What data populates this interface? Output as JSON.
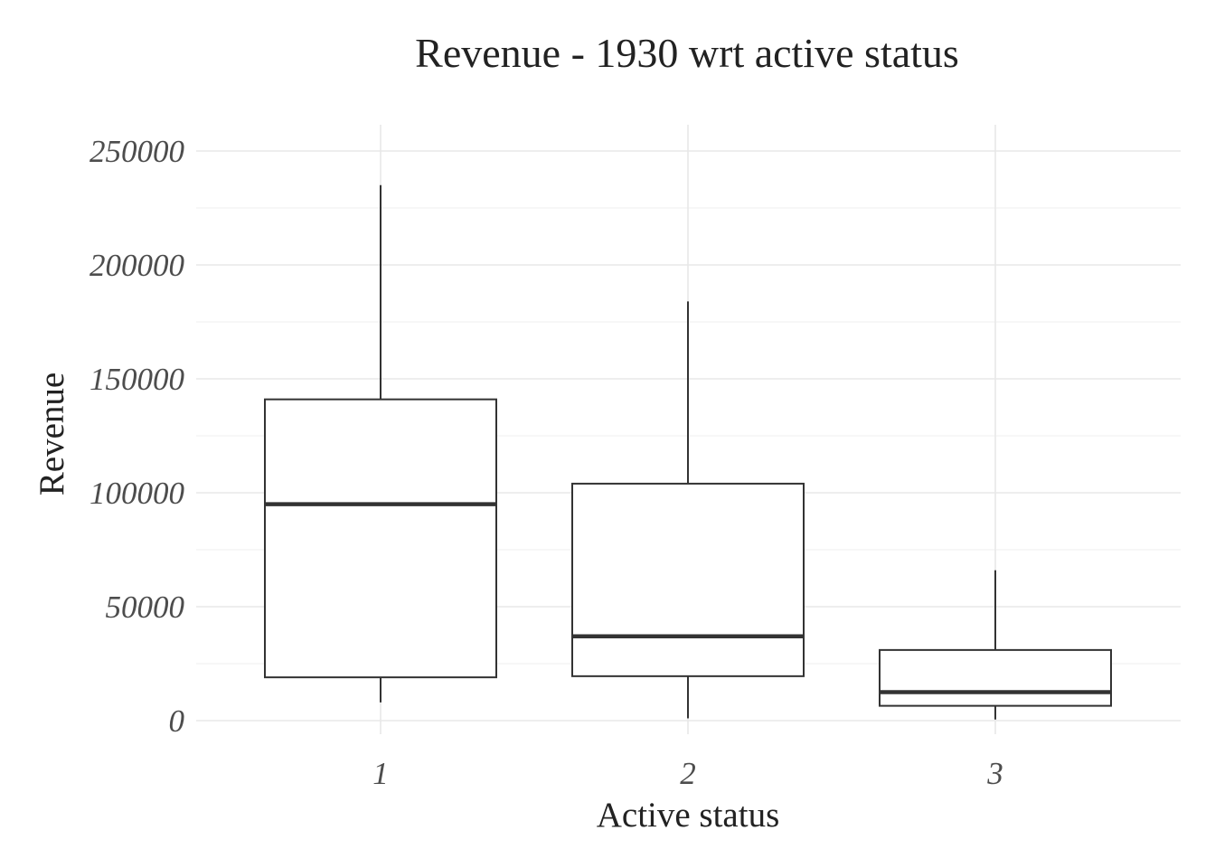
{
  "chart_data": {
    "type": "boxplot",
    "title": "Revenue - 1930 wrt active status",
    "xlabel": "Active status",
    "ylabel": "Revenue",
    "categories": [
      "1",
      "2",
      "3"
    ],
    "yticks": [
      "0",
      "50000",
      "100000",
      "150000",
      "200000",
      "250000"
    ],
    "ylim": [
      -6000,
      262000
    ],
    "grid": true,
    "boxes": [
      {
        "category": "1",
        "min": 8000,
        "q1": 19000,
        "median": 95000,
        "q3": 141000,
        "max": 235000
      },
      {
        "category": "2",
        "min": 1000,
        "q1": 19500,
        "median": 37000,
        "q3": 104000,
        "max": 184000
      },
      {
        "category": "3",
        "min": 500,
        "q1": 6500,
        "median": 12500,
        "q3": 31000,
        "max": 66000
      }
    ]
  }
}
